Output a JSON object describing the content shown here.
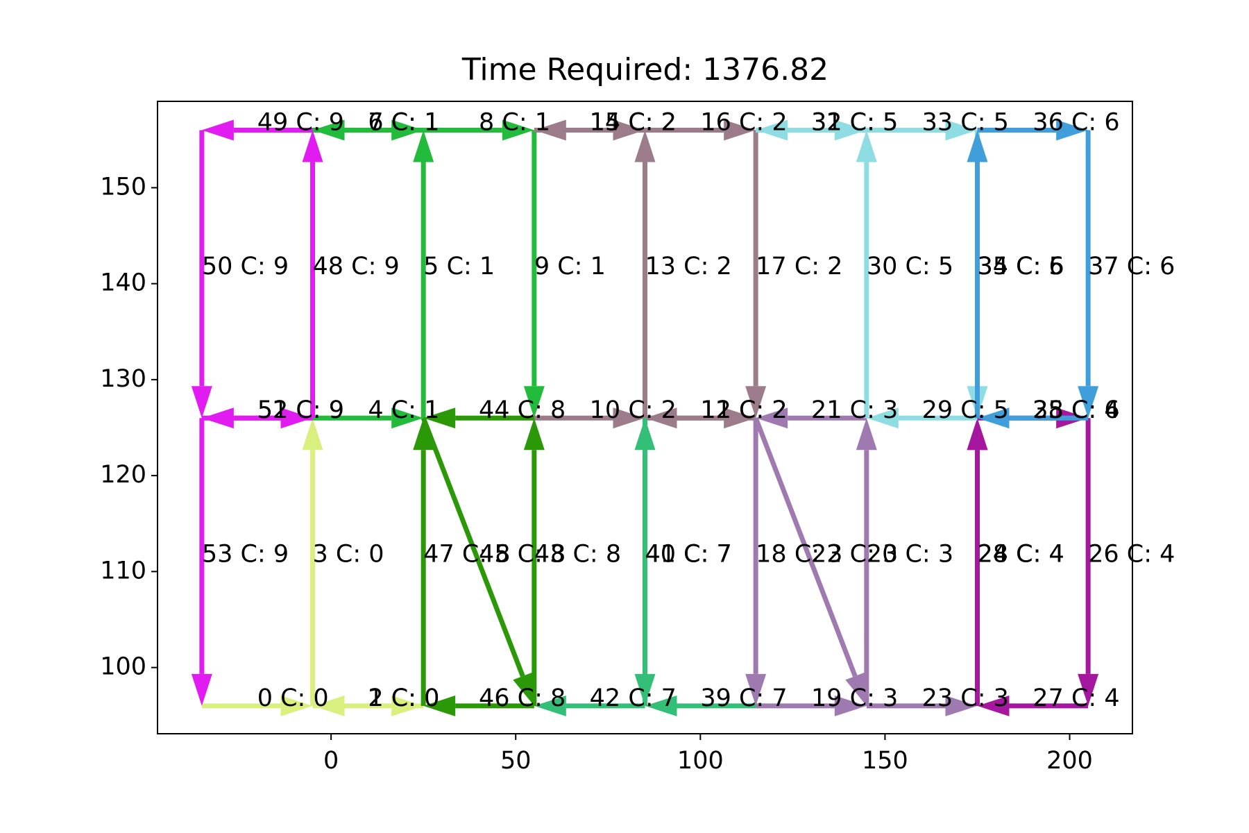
{
  "chart_data": {
    "type": "route",
    "title": "Time Required: 1376.82",
    "xlim": [
      -47,
      217
    ],
    "ylim": [
      93.1,
      159.0
    ],
    "xticks": [
      0,
      50,
      100,
      150,
      200
    ],
    "yticks": [
      100,
      110,
      120,
      130,
      140,
      150
    ],
    "edges": [
      {
        "label": "0 C: 0",
        "from": [
          -35,
          96
        ],
        "to": [
          -5,
          96
        ],
        "color": "#d9f07f"
      },
      {
        "label": "1 C: 0",
        "from": [
          -5,
          96
        ],
        "to": [
          25,
          96
        ],
        "color": "#d9f07f"
      },
      {
        "label": "2 C: 0",
        "from": [
          25,
          96
        ],
        "to": [
          -5,
          96
        ],
        "color": "#d9f07f"
      },
      {
        "label": "3 C: 0",
        "from": [
          -5,
          96
        ],
        "to": [
          -5,
          126
        ],
        "color": "#d9f07f"
      },
      {
        "label": "4 C: 1",
        "from": [
          -5,
          126
        ],
        "to": [
          25,
          126
        ],
        "color": "#22bb3b"
      },
      {
        "label": "5 C: 1",
        "from": [
          25,
          126
        ],
        "to": [
          25,
          156
        ],
        "color": "#22bb3b"
      },
      {
        "label": "6 C: 1",
        "from": [
          25,
          156
        ],
        "to": [
          -5,
          156
        ],
        "color": "#22bb3b"
      },
      {
        "label": "7 C: 1",
        "from": [
          -5,
          156
        ],
        "to": [
          25,
          156
        ],
        "color": "#22bb3b"
      },
      {
        "label": "8 C: 1",
        "from": [
          25,
          156
        ],
        "to": [
          55,
          156
        ],
        "color": "#22bb3b"
      },
      {
        "label": "9 C: 1",
        "from": [
          55,
          156
        ],
        "to": [
          55,
          126
        ],
        "color": "#22bb3b"
      },
      {
        "label": "10 C: 2",
        "from": [
          55,
          126
        ],
        "to": [
          85,
          126
        ],
        "color": "#9c7b8b"
      },
      {
        "label": "11 C: 2",
        "from": [
          85,
          126
        ],
        "to": [
          115,
          126
        ],
        "color": "#9c7b8b"
      },
      {
        "label": "12 C: 2",
        "from": [
          115,
          126
        ],
        "to": [
          85,
          126
        ],
        "color": "#9c7b8b"
      },
      {
        "label": "13 C: 2",
        "from": [
          85,
          126
        ],
        "to": [
          85,
          156
        ],
        "color": "#9c7b8b"
      },
      {
        "label": "14 C: 2",
        "from": [
          85,
          156
        ],
        "to": [
          55,
          156
        ],
        "color": "#9c7b8b"
      },
      {
        "label": "15 C: 2",
        "from": [
          55,
          156
        ],
        "to": [
          85,
          156
        ],
        "color": "#9c7b8b"
      },
      {
        "label": "16 C: 2",
        "from": [
          85,
          156
        ],
        "to": [
          115,
          156
        ],
        "color": "#9c7b8b"
      },
      {
        "label": "17 C: 2",
        "from": [
          115,
          156
        ],
        "to": [
          115,
          126
        ],
        "color": "#9c7b8b"
      },
      {
        "label": "18 C: 3",
        "from": [
          115,
          126
        ],
        "to": [
          115,
          96
        ],
        "color": "#9f7ab0"
      },
      {
        "label": "19 C: 3",
        "from": [
          115,
          96
        ],
        "to": [
          145,
          96
        ],
        "color": "#9f7ab0"
      },
      {
        "label": "20 C: 3",
        "from": [
          145,
          96
        ],
        "to": [
          145,
          126
        ],
        "color": "#9f7ab0"
      },
      {
        "label": "21 C: 3",
        "from": [
          145,
          126
        ],
        "to": [
          115,
          126
        ],
        "color": "#9f7ab0"
      },
      {
        "label": "22 C: 3",
        "from": [
          115,
          126
        ],
        "to": [
          145,
          96
        ],
        "color": "#9f7ab0"
      },
      {
        "label": "23 C: 3",
        "from": [
          145,
          96
        ],
        "to": [
          175,
          96
        ],
        "color": "#9f7ab0"
      },
      {
        "label": "24 C: 4",
        "from": [
          175,
          96
        ],
        "to": [
          175,
          126
        ],
        "color": "#a5179f"
      },
      {
        "label": "25 C: 4",
        "from": [
          175,
          126
        ],
        "to": [
          205,
          126
        ],
        "color": "#a5179f"
      },
      {
        "label": "26 C: 4",
        "from": [
          205,
          126
        ],
        "to": [
          205,
          96
        ],
        "color": "#a5179f"
      },
      {
        "label": "27 C: 4",
        "from": [
          205,
          96
        ],
        "to": [
          175,
          96
        ],
        "color": "#a5179f"
      },
      {
        "label": "28 C: 4",
        "from": [
          175,
          96
        ],
        "to": [
          175,
          126
        ],
        "color": "#a5179f"
      },
      {
        "label": "29 C: 5",
        "from": [
          175,
          126
        ],
        "to": [
          145,
          126
        ],
        "color": "#8edde3"
      },
      {
        "label": "30 C: 5",
        "from": [
          145,
          126
        ],
        "to": [
          145,
          156
        ],
        "color": "#8edde3"
      },
      {
        "label": "31 C: 5",
        "from": [
          145,
          156
        ],
        "to": [
          115,
          156
        ],
        "color": "#8edde3"
      },
      {
        "label": "32 C: 5",
        "from": [
          115,
          156
        ],
        "to": [
          145,
          156
        ],
        "color": "#8edde3"
      },
      {
        "label": "33 C: 5",
        "from": [
          145,
          156
        ],
        "to": [
          175,
          156
        ],
        "color": "#8edde3"
      },
      {
        "label": "34 C: 5",
        "from": [
          175,
          156
        ],
        "to": [
          175,
          126
        ],
        "color": "#8edde3"
      },
      {
        "label": "35 C: 6",
        "from": [
          175,
          126
        ],
        "to": [
          175,
          156
        ],
        "color": "#409fda"
      },
      {
        "label": "36 C: 6",
        "from": [
          175,
          156
        ],
        "to": [
          205,
          156
        ],
        "color": "#409fda"
      },
      {
        "label": "37 C: 6",
        "from": [
          205,
          156
        ],
        "to": [
          205,
          126
        ],
        "color": "#409fda"
      },
      {
        "label": "38 C: 6",
        "from": [
          205,
          126
        ],
        "to": [
          175,
          126
        ],
        "color": "#409fda"
      },
      {
        "label": "39 C: 7",
        "from": [
          115,
          96
        ],
        "to": [
          85,
          96
        ],
        "color": "#33bf78"
      },
      {
        "label": "40 C: 7",
        "from": [
          85,
          96
        ],
        "to": [
          85,
          126
        ],
        "color": "#33bf78"
      },
      {
        "label": "41 C: 7",
        "from": [
          85,
          126
        ],
        "to": [
          85,
          96
        ],
        "color": "#33bf78"
      },
      {
        "label": "42 C: 7",
        "from": [
          85,
          96
        ],
        "to": [
          55,
          96
        ],
        "color": "#33bf78"
      },
      {
        "label": "43 C: 8",
        "from": [
          55,
          96
        ],
        "to": [
          55,
          126
        ],
        "color": "#2b9808"
      },
      {
        "label": "44 C: 8",
        "from": [
          55,
          126
        ],
        "to": [
          25,
          126
        ],
        "color": "#2b9808"
      },
      {
        "label": "45 C: 8",
        "from": [
          25,
          126
        ],
        "to": [
          55,
          96
        ],
        "color": "#2b9808"
      },
      {
        "label": "46 C: 8",
        "from": [
          55,
          96
        ],
        "to": [
          25,
          96
        ],
        "color": "#2b9808"
      },
      {
        "label": "47 C: 8",
        "from": [
          25,
          96
        ],
        "to": [
          25,
          126
        ],
        "color": "#2b9808"
      },
      {
        "label": "48 C: 9",
        "from": [
          -5,
          126
        ],
        "to": [
          -5,
          156
        ],
        "color": "#e01cf0"
      },
      {
        "label": "49 C: 9",
        "from": [
          -5,
          156
        ],
        "to": [
          -35,
          156
        ],
        "color": "#e01cf0"
      },
      {
        "label": "50 C: 9",
        "from": [
          -35,
          156
        ],
        "to": [
          -35,
          126
        ],
        "color": "#e01cf0"
      },
      {
        "label": "51 C: 9",
        "from": [
          -35,
          126
        ],
        "to": [
          -5,
          126
        ],
        "color": "#e01cf0"
      },
      {
        "label": "52 C: 9",
        "from": [
          -5,
          126
        ],
        "to": [
          -35,
          126
        ],
        "color": "#e01cf0"
      },
      {
        "label": "53 C: 9",
        "from": [
          -35,
          126
        ],
        "to": [
          -35,
          96
        ],
        "color": "#e01cf0"
      }
    ]
  }
}
